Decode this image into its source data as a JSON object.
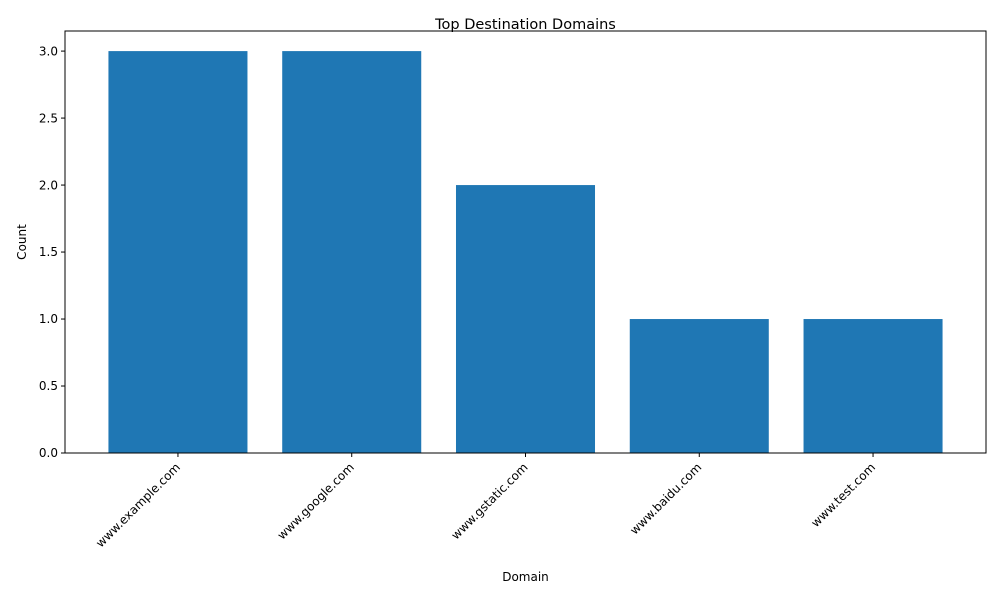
{
  "chart_data": {
    "type": "bar",
    "title": "Top Destination Domains",
    "xlabel": "Domain",
    "ylabel": "Count",
    "categories": [
      "www.example.com",
      "www.google.com",
      "www.gstatic.com",
      "www.baidu.com",
      "www.test.com"
    ],
    "values": [
      3,
      3,
      2,
      1,
      1
    ],
    "ylim": [
      0,
      3.15
    ],
    "yticks": [
      "0.0",
      "0.5",
      "1.0",
      "1.5",
      "2.0",
      "2.5",
      "3.0"
    ],
    "bar_color": "#1f77b4",
    "grid": false,
    "legend": "none"
  }
}
